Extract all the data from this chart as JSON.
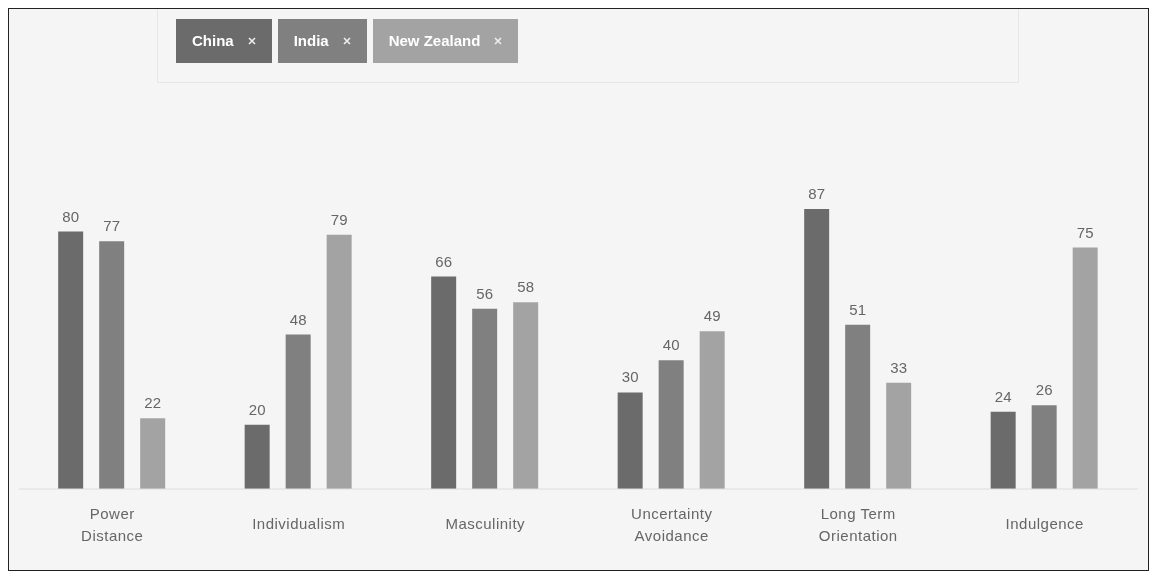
{
  "chart_data": {
    "type": "bar",
    "categories": [
      "Power Distance",
      "Individualism",
      "Masculinity",
      "Uncertainty Avoidance",
      "Long Term Orientation",
      "Indulgence"
    ],
    "series": [
      {
        "name": "China",
        "color": "#6b6b6b",
        "values": [
          80,
          20,
          66,
          30,
          87,
          24
        ]
      },
      {
        "name": "India",
        "color": "#808080",
        "values": [
          77,
          48,
          56,
          40,
          51,
          26
        ]
      },
      {
        "name": "New Zealand",
        "color": "#a3a3a3",
        "values": [
          22,
          79,
          58,
          49,
          33,
          75
        ]
      }
    ],
    "data_labels": true,
    "legend": "top left",
    "grid": false
  }
}
